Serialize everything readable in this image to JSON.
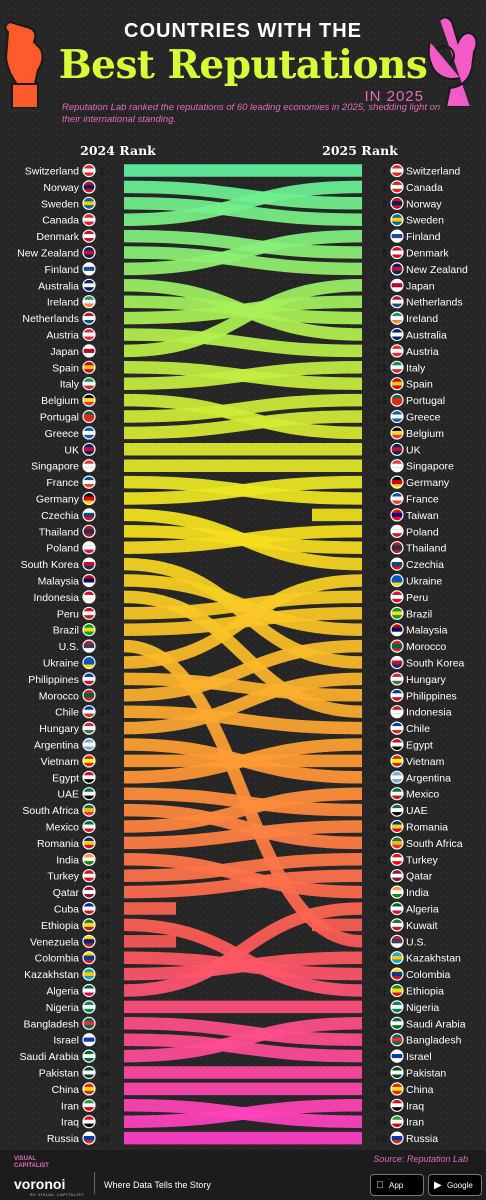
{
  "header": {
    "title_top": "COUNTRIES WITH THE",
    "title_main": "Best Reputations",
    "title_year": "IN 2025",
    "subtitle": "Reputation Lab ranked the reputations of 60 leading economies in 2025, shedding light on their international standing."
  },
  "colors": {
    "background": "#262626",
    "title_accent": "#d6ff3a",
    "pink_accent": "#e36bb8",
    "gradient_top": "#5ef0a0",
    "gradient_mid": "#f5e51c",
    "gradient_lower": "#ff8a3d",
    "gradient_bottom": "#ff3fc0"
  },
  "chart_data": {
    "type": "bump",
    "column_left_label": "2024 Rank",
    "column_right_label": "2025 Rank",
    "rank_2024": [
      "Switzerland",
      "Norway",
      "Sweden",
      "Canada",
      "Denmark",
      "New Zealand",
      "Finland",
      "Australia",
      "Ireland",
      "Netherlands",
      "Austria",
      "Japan",
      "Spain",
      "Italy",
      "Belgium",
      "Portugal",
      "Greece",
      "UK",
      "Singapore",
      "France",
      "Germany",
      "Czechia",
      "Thailand",
      "Poland",
      "South Korea",
      "Malaysia",
      "Indonesia",
      "Peru",
      "Brazil",
      "U.S.",
      "Ukraine",
      "Philippines",
      "Morocco",
      "Chile",
      "Hungary",
      "Argentina",
      "Vietnam",
      "Egypt",
      "UAE",
      "South Africa",
      "Mexico",
      "Romania",
      "India",
      "Turkey",
      "Qatar",
      "Cuba",
      "Ethiopia",
      "Venezuela",
      "Colombia",
      "Kazakhstan",
      "Algeria",
      "Nigeria",
      "Bangladesh",
      "Israel",
      "Saudi Arabia",
      "Pakistan",
      "China",
      "Iran",
      "Iraq",
      "Russia"
    ],
    "rank_2025": [
      "Switzerland",
      "Canada",
      "Norway",
      "Sweden",
      "Finland",
      "Denmark",
      "New Zealand",
      "Japan",
      "Netherlands",
      "Ireland",
      "Australia",
      "Austria",
      "Italy",
      "Spain",
      "Portugal",
      "Greece",
      "Belgium",
      "UK",
      "Singapore",
      "Germany",
      "France",
      "Taiwan",
      "Poland",
      "Thailand",
      "Czechia",
      "Ukraine",
      "Peru",
      "Brazil",
      "Malaysia",
      "Morocco",
      "South Korea",
      "Hungary",
      "Philippines",
      "Indonesia",
      "Chile",
      "Egypt",
      "Vietnam",
      "Argentina",
      "Mexico",
      "UAE",
      "Romania",
      "South Africa",
      "Turkey",
      "Qatar",
      "India",
      "Algeria",
      "Kuwait",
      "U.S.",
      "Kazakhstan",
      "Colombia",
      "Ethiopia",
      "Nigeria",
      "Saudi Arabia",
      "Bangladesh",
      "Israel",
      "Pakistan",
      "China",
      "Iraq",
      "Iran",
      "Russia"
    ]
  },
  "flags": {
    "Switzerland": [
      "#e0202b",
      "#ffffff",
      "#e0202b"
    ],
    "Norway": [
      "#c8102e",
      "#00205b",
      "#c8102e"
    ],
    "Sweden": [
      "#006aa7",
      "#fecc00",
      "#006aa7"
    ],
    "Canada": [
      "#e0202b",
      "#ffffff",
      "#e0202b"
    ],
    "Denmark": [
      "#c8102e",
      "#ffffff",
      "#c8102e"
    ],
    "New Zealand": [
      "#012169",
      "#c8102e",
      "#012169"
    ],
    "Finland": [
      "#ffffff",
      "#1a4e9c",
      "#ffffff"
    ],
    "Australia": [
      "#012169",
      "#ffffff",
      "#012169"
    ],
    "Ireland": [
      "#169b62",
      "#ffffff",
      "#ff883e"
    ],
    "Netherlands": [
      "#ae1c28",
      "#ffffff",
      "#21468b"
    ],
    "Austria": [
      "#ed2939",
      "#ffffff",
      "#ed2939"
    ],
    "Japan": [
      "#ffffff",
      "#bc002d",
      "#ffffff"
    ],
    "Spain": [
      "#c60b1e",
      "#ffc400",
      "#c60b1e"
    ],
    "Italy": [
      "#009246",
      "#ffffff",
      "#ce2b37"
    ],
    "Belgium": [
      "#000000",
      "#fdda24",
      "#ef3340"
    ],
    "Portugal": [
      "#046a38",
      "#da291c",
      "#da291c"
    ],
    "Greece": [
      "#0d5eaf",
      "#ffffff",
      "#0d5eaf"
    ],
    "UK": [
      "#012169",
      "#c8102e",
      "#012169"
    ],
    "Singapore": [
      "#ef3340",
      "#ffffff",
      "#ffffff"
    ],
    "France": [
      "#0055a4",
      "#ffffff",
      "#ef4135"
    ],
    "Germany": [
      "#000000",
      "#dd0000",
      "#ffce00"
    ],
    "Czechia": [
      "#ffffff",
      "#11457e",
      "#d7141a"
    ],
    "Thailand": [
      "#a51931",
      "#2d2a4a",
      "#a51931"
    ],
    "Poland": [
      "#ffffff",
      "#ffffff",
      "#dc143c"
    ],
    "South Korea": [
      "#ffffff",
      "#c60c30",
      "#003478"
    ],
    "Malaysia": [
      "#cc0001",
      "#010066",
      "#ffffff"
    ],
    "Indonesia": [
      "#ce1126",
      "#ffffff",
      "#ffffff"
    ],
    "Peru": [
      "#d91023",
      "#ffffff",
      "#d91023"
    ],
    "Brazil": [
      "#009c3b",
      "#ffdf00",
      "#009c3b"
    ],
    "U.S.": [
      "#b22234",
      "#3c3b6e",
      "#ffffff"
    ],
    "Ukraine": [
      "#0057b7",
      "#0057b7",
      "#ffd700"
    ],
    "Philippines": [
      "#0038a8",
      "#ffffff",
      "#ce1126"
    ],
    "Morocco": [
      "#c1272d",
      "#006233",
      "#c1272d"
    ],
    "Chile": [
      "#0039a6",
      "#ffffff",
      "#d52b1e"
    ],
    "Hungary": [
      "#ce2939",
      "#ffffff",
      "#477050"
    ],
    "Argentina": [
      "#74acdf",
      "#ffffff",
      "#74acdf"
    ],
    "Vietnam": [
      "#da251d",
      "#ffff00",
      "#da251d"
    ],
    "Egypt": [
      "#ce1126",
      "#ffffff",
      "#000000"
    ],
    "UAE": [
      "#00732f",
      "#ffffff",
      "#000000"
    ],
    "South Africa": [
      "#007a4d",
      "#ffb612",
      "#de3831"
    ],
    "Mexico": [
      "#006847",
      "#ffffff",
      "#ce1126"
    ],
    "Romania": [
      "#002b7f",
      "#fcd116",
      "#ce1126"
    ],
    "India": [
      "#ff9933",
      "#ffffff",
      "#138808"
    ],
    "Turkey": [
      "#e30a17",
      "#ffffff",
      "#e30a17"
    ],
    "Qatar": [
      "#8a1538",
      "#ffffff",
      "#8a1538"
    ],
    "Cuba": [
      "#002a8f",
      "#ffffff",
      "#cf142b"
    ],
    "Ethiopia": [
      "#078930",
      "#fcdd09",
      "#da121a"
    ],
    "Venezuela": [
      "#ffcc00",
      "#00247d",
      "#cf142b"
    ],
    "Colombia": [
      "#fcd116",
      "#003893",
      "#ce1126"
    ],
    "Kazakhstan": [
      "#00afca",
      "#fec50c",
      "#00afca"
    ],
    "Algeria": [
      "#006233",
      "#ffffff",
      "#d21034"
    ],
    "Nigeria": [
      "#008751",
      "#ffffff",
      "#008751"
    ],
    "Bangladesh": [
      "#006a4e",
      "#f42a41",
      "#006a4e"
    ],
    "Israel": [
      "#ffffff",
      "#0038b8",
      "#ffffff"
    ],
    "Saudi Arabia": [
      "#006c35",
      "#ffffff",
      "#006c35"
    ],
    "Pakistan": [
      "#01411c",
      "#ffffff",
      "#01411c"
    ],
    "China": [
      "#de2910",
      "#ffde00",
      "#de2910"
    ],
    "Iran": [
      "#239f40",
      "#ffffff",
      "#da0000"
    ],
    "Iraq": [
      "#ce1126",
      "#ffffff",
      "#000000"
    ],
    "Russia": [
      "#ffffff",
      "#0039a6",
      "#d52b1e"
    ],
    "Taiwan": [
      "#fe0000",
      "#000095",
      "#fe0000"
    ],
    "Kuwait": [
      "#007a3d",
      "#ffffff",
      "#ce1126"
    ]
  },
  "icons": {
    "hand_left": "fist-icon",
    "hand_right": "ok-hand-icon"
  },
  "footer": {
    "source": "Source: Reputation Lab",
    "brand_top": "VISUAL\nCAPITALIST",
    "brand_name": "voronoi",
    "brand_by": "BY VISUAL CAPITALIST",
    "tagline": "Where Data Tells the Story",
    "app_store": "App Store",
    "google_play": "Google Play"
  }
}
